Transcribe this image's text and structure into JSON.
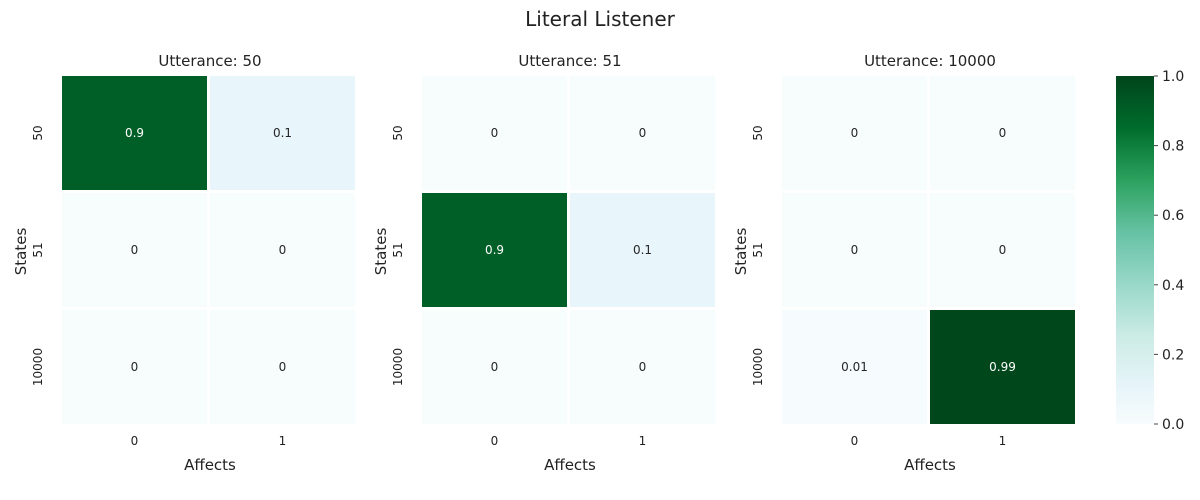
{
  "chart_data": {
    "type": "heatmap",
    "title": "Literal Listener",
    "colormap": "Greens",
    "colorbar": {
      "min": 0.0,
      "max": 1.0,
      "ticks": [
        "0.0",
        "0.2",
        "0.4",
        "0.6",
        "0.8",
        "1.0"
      ]
    },
    "panels": [
      {
        "title": "Utterance: 50",
        "xlabel": "Affects",
        "ylabel": "States",
        "x_categories": [
          "0",
          "1"
        ],
        "y_categories": [
          "50",
          "51",
          "10000"
        ],
        "values": [
          [
            0.9,
            0.1
          ],
          [
            0,
            0
          ],
          [
            0,
            0
          ]
        ],
        "labels": [
          [
            "0.9",
            "0.1"
          ],
          [
            "0",
            "0"
          ],
          [
            "0",
            "0"
          ]
        ]
      },
      {
        "title": "Utterance: 51",
        "xlabel": "Affects",
        "ylabel": "States",
        "x_categories": [
          "0",
          "1"
        ],
        "y_categories": [
          "50",
          "51",
          "10000"
        ],
        "values": [
          [
            0,
            0
          ],
          [
            0.9,
            0.1
          ],
          [
            0,
            0
          ]
        ],
        "labels": [
          [
            "0",
            "0"
          ],
          [
            "0.9",
            "0.1"
          ],
          [
            "0",
            "0"
          ]
        ]
      },
      {
        "title": "Utterance: 10000",
        "xlabel": "Affects",
        "ylabel": "States",
        "x_categories": [
          "0",
          "1"
        ],
        "y_categories": [
          "50",
          "51",
          "10000"
        ],
        "values": [
          [
            0,
            0
          ],
          [
            0,
            0
          ],
          [
            0.01,
            0.99
          ]
        ],
        "labels": [
          [
            "0",
            "0"
          ],
          [
            "0",
            "0"
          ],
          [
            "0.01",
            "0.99"
          ]
        ]
      }
    ]
  }
}
